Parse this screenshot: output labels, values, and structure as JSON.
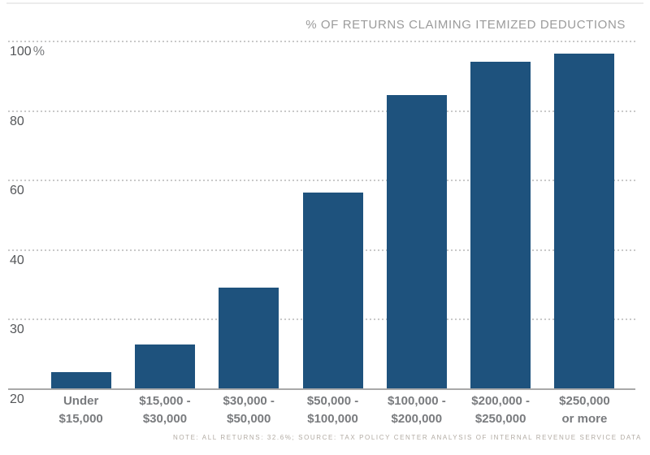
{
  "header": {
    "title": "% OF RETURNS CLAIMING ITEMIZED DEDUCTIONS"
  },
  "footer": {
    "note": "NOTE: ALL RETURNS: 32.6%; SOURCE: TAX POLICY CENTER ANALYSIS OF INTERNAL REVENUE SERVICE DATA"
  },
  "colors": {
    "bar": "#1e527d",
    "grid": "#c9c9c9",
    "axis": "#a9a9a9",
    "title_text": "#9b9b9b",
    "tick_text": "#55575a",
    "category_text": "#797b7e",
    "note_text": "#b3aca4",
    "top_border": "#ececec"
  },
  "chart_data": {
    "type": "bar",
    "title": "% OF RETURNS CLAIMING ITEMIZED DEDUCTIONS",
    "categories": [
      "Under $15,000",
      "$15,000 - $30,000",
      "$30,000 - $50,000",
      "$50,000 - $100,000",
      "$100,000 - $200,000",
      "$200,000 - $250,000",
      "$250,000 or more"
    ],
    "category_lines": [
      [
        "Under",
        "$15,000"
      ],
      [
        "$15,000 -",
        "$30,000"
      ],
      [
        "$30,000 -",
        "$50,000"
      ],
      [
        "$50,000 -",
        "$100,000"
      ],
      [
        "$100,000 -",
        "$200,000"
      ],
      [
        "$200,000 -",
        "$250,000"
      ],
      [
        "$250,000",
        "or more"
      ]
    ],
    "values": [
      22.5,
      26.4,
      34.6,
      56.5,
      84.5,
      94.2,
      96.6
    ],
    "xlabel": "",
    "ylabel": "",
    "y_ticks": [
      20,
      30,
      40,
      60,
      80,
      100
    ],
    "y_tick_labels": [
      "20",
      "30",
      "40",
      "60",
      "80",
      "100%"
    ],
    "ylim": [
      20,
      100
    ],
    "scale_note": "y ticks equally spaced (non-linear value scale)",
    "grid": "dotted horizontal",
    "legend": "none",
    "note": "NOTE: ALL RETURNS: 32.6%; SOURCE: TAX POLICY CENTER ANALYSIS OF INTERNAL REVENUE SERVICE DATA"
  }
}
